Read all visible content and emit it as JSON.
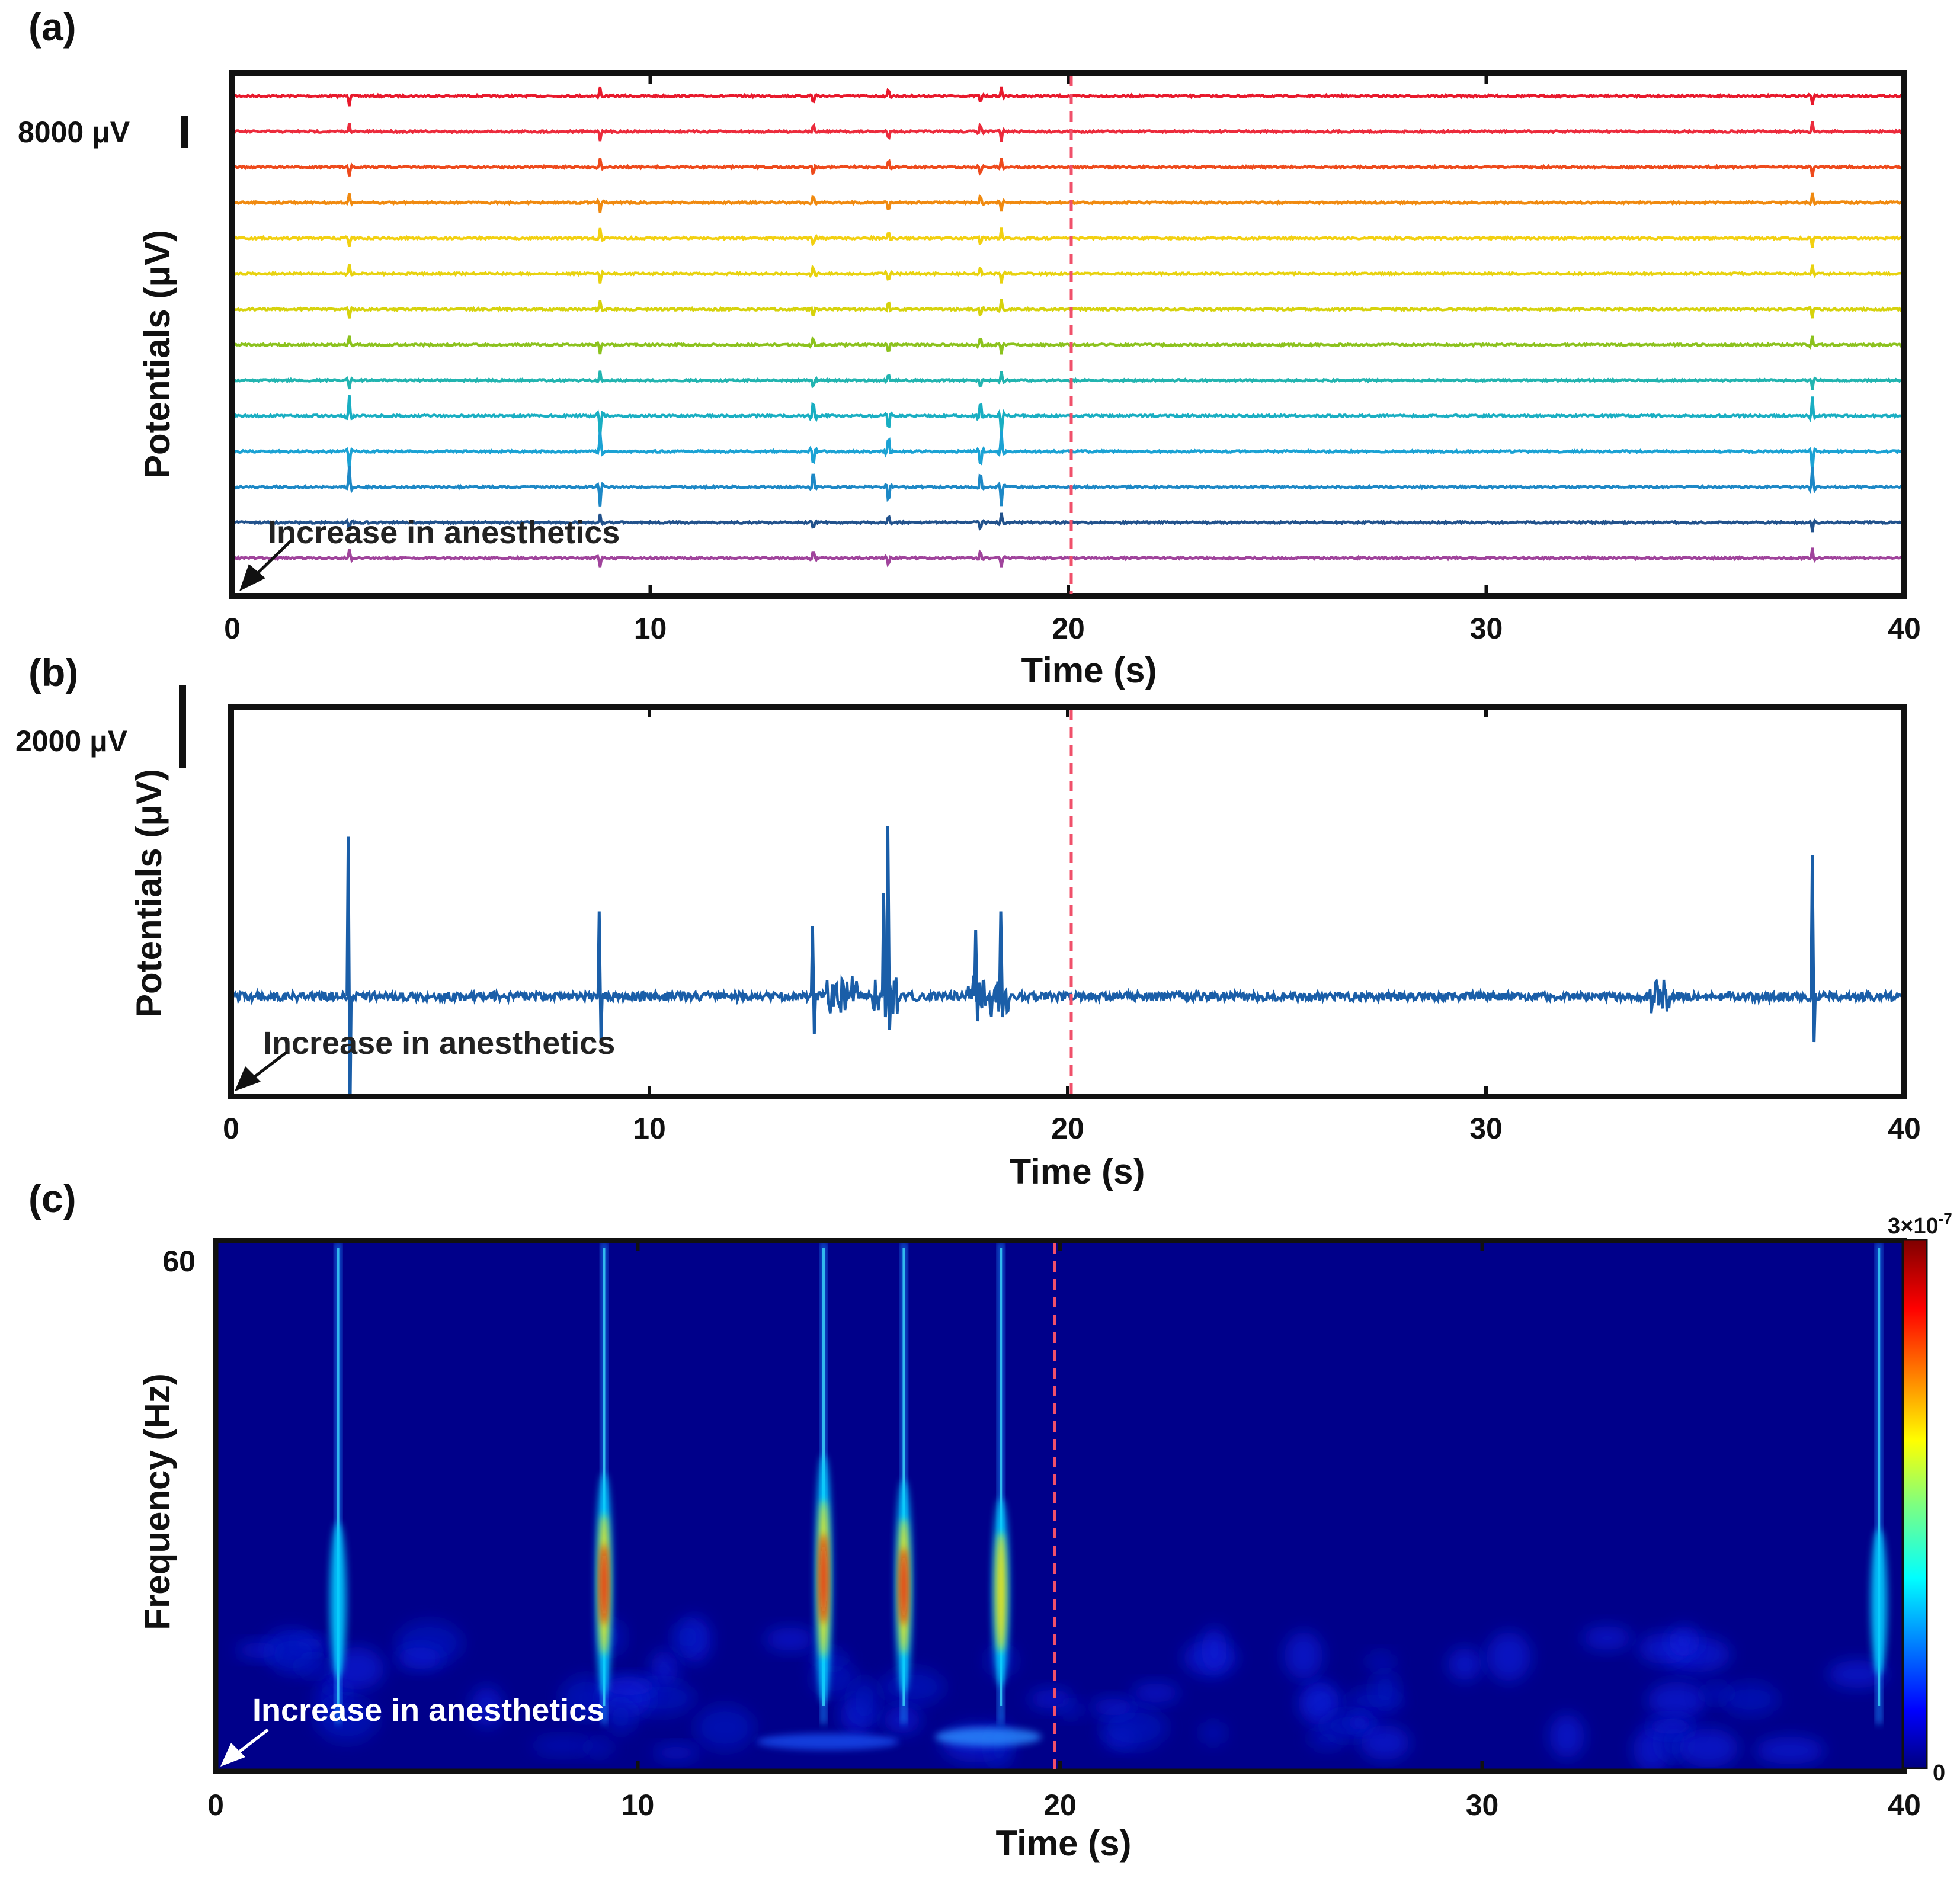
{
  "chart_data": [
    {
      "panel": "(a)",
      "type": "line",
      "xlabel": "Time (s)",
      "ylabel": "Potentials (μV)",
      "xlim": [
        0,
        40
      ],
      "xticks": [
        "0",
        "10",
        "20",
        "30",
        "40"
      ],
      "scale_bar": "8000 μV",
      "vertical_marker_x": 20,
      "annotation": "Increase in anesthetics",
      "channel_count": 14,
      "spike_times": [
        2.8,
        8.8,
        13.9,
        15.7,
        17.9,
        18.4,
        37.8
      ],
      "colors": [
        "#e8192c",
        "#ec2b3c",
        "#ee4a1c",
        "#f08a10",
        "#f2d011",
        "#e8d20f",
        "#d6d20c",
        "#8cc21e",
        "#22b4b0",
        "#19aec2",
        "#1ba2d4",
        "#1d88c6",
        "#22528c",
        "#a0449c"
      ]
    },
    {
      "panel": "(b)",
      "type": "line",
      "xlabel": "Time (s)",
      "ylabel": "Potentials (μV)",
      "xlim": [
        0,
        40
      ],
      "xticks": [
        "0",
        "10",
        "20",
        "30",
        "40"
      ],
      "scale_bar": "2000 μV",
      "vertical_marker_x": 20,
      "annotation": "Increase in anesthetics",
      "color": "#1a5ea8",
      "spikes": [
        {
          "x": 2.8,
          "up": 3850,
          "down": 2900
        },
        {
          "x": 8.8,
          "up": 2050,
          "down": 1050
        },
        {
          "x": 13.9,
          "up": 1700,
          "down": 900
        },
        {
          "x": 15.6,
          "up": 2500,
          "down": 500
        },
        {
          "x": 15.7,
          "up": 4100,
          "down": 800
        },
        {
          "x": 17.8,
          "up": 1600,
          "down": 600
        },
        {
          "x": 18.4,
          "up": 2050,
          "down": 500
        },
        {
          "x": 37.8,
          "up": 3400,
          "down": 1100
        }
      ]
    },
    {
      "panel": "(c)",
      "type": "heatmap",
      "xlabel": "Time (s)",
      "ylabel": "Frequency (Hz)",
      "xlim": [
        0,
        40
      ],
      "xticks": [
        "0",
        "10",
        "20",
        "30",
        "40"
      ],
      "yticks": [
        "60"
      ],
      "colorbar": {
        "max_label": "3×10",
        "max_exp": "-7",
        "min_label": "0"
      },
      "vertical_marker_x": 20,
      "annotation": "Increase in anesthetics",
      "bursts": [
        {
          "t": 2.9,
          "peak": 0.45
        },
        {
          "t": 9.2,
          "peak": 0.85
        },
        {
          "t": 14.4,
          "peak": 1.0
        },
        {
          "t": 16.3,
          "peak": 0.8
        },
        {
          "t": 18.6,
          "peak": 0.65
        },
        {
          "t": 39.4,
          "peak": 0.4
        }
      ]
    }
  ]
}
